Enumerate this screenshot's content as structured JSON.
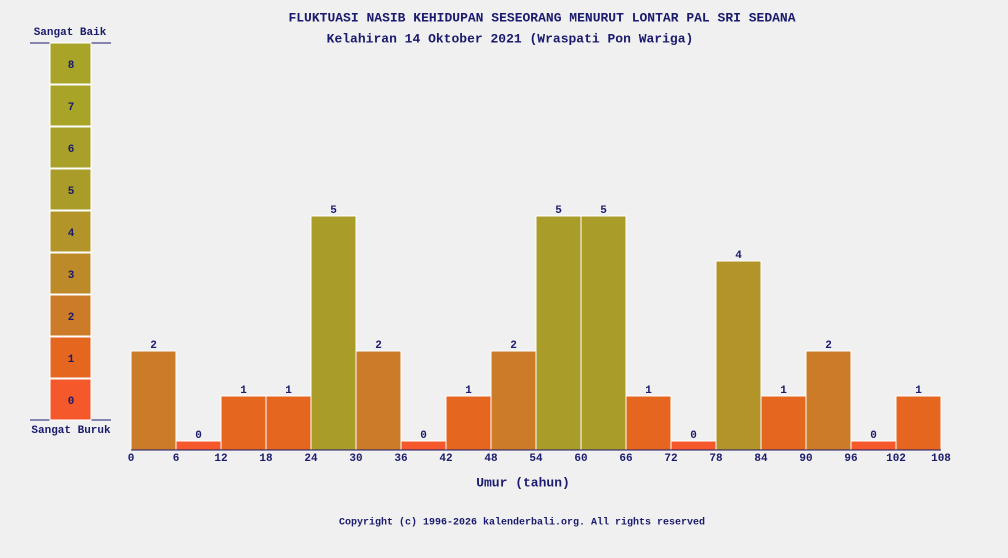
{
  "chart_data": {
    "type": "histogram",
    "title": "FLUKTUASI NASIB KEHIDUPAN SESEORANG MENURUT LONTAR PAL SRI SEDANA",
    "subtitle": "Kelahiran 14 Oktober 2021 (Wraspati Pon Wariga)",
    "x_label": "Umur (tahun)",
    "bins": [
      0,
      6,
      12,
      18,
      24,
      30,
      36,
      42,
      48,
      54,
      60,
      66,
      72,
      78,
      84,
      90,
      96,
      102,
      108
    ],
    "values": [
      2,
      0,
      1,
      1,
      5,
      2,
      0,
      1,
      2,
      5,
      5,
      1,
      0,
      4,
      1,
      2,
      0,
      1
    ],
    "xlim": [
      0,
      108
    ],
    "xticks": [
      0,
      6,
      12,
      18,
      24,
      30,
      36,
      42,
      48,
      54,
      60,
      66,
      72,
      78,
      84,
      90,
      96,
      102,
      108
    ],
    "ylim": [
      -0.2,
      8
    ],
    "scale": {
      "top_label": "Sangat Baik",
      "bottom_label": "Sangat Buruk",
      "levels": [
        0,
        1,
        2,
        3,
        4,
        5,
        6,
        7,
        8
      ],
      "colors": [
        "#f5582a",
        "#e4661f",
        "#cc7c28",
        "#bc8a28",
        "#b29428",
        "#aa9c28",
        "#a8a028",
        "#a8a428",
        "#a8a428"
      ]
    },
    "copyright": "Copyright (c) 1996-2026 kalenderbali.org. All rights reserved"
  }
}
